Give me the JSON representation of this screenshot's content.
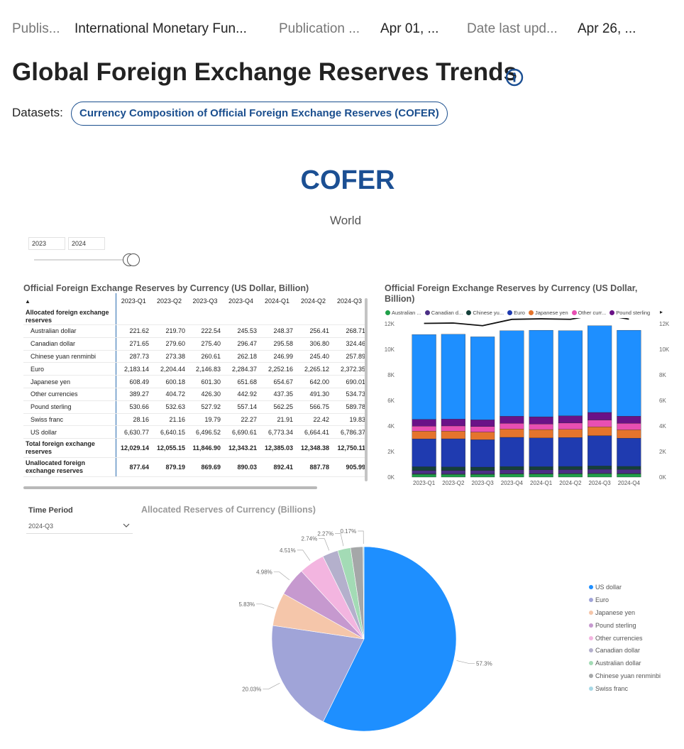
{
  "meta": {
    "publisher_key": "Publis...",
    "publisher_val": "International Monetary Fun...",
    "pubdate_key": "Publication ...",
    "pubdate_val": "Apr 01, ...",
    "updated_key": "Date last upd...",
    "updated_val": "Apr 26, ..."
  },
  "page": {
    "title": "Global Foreign Exchange Reserves Trends",
    "datasets_label": "Datasets:",
    "dataset_link": "Currency Composition of Official Foreign Exchange Reserves (COFER)"
  },
  "report": {
    "title": "COFER",
    "subtitle": "World",
    "slider": {
      "start_year": "2023",
      "end_year": "2024",
      "handle_position": 1.0
    }
  },
  "table": {
    "title": "Official Foreign Exchange Reserves by Currency (US Dollar, Billion)",
    "sort_icon": "sort-ascending-triangle",
    "columns": [
      "2023-Q1",
      "2023-Q2",
      "2023-Q3",
      "2023-Q4",
      "2024-Q1",
      "2024-Q2",
      "2024-Q3"
    ],
    "group_label": "Allocated foreign exchange reserves",
    "rows": [
      {
        "label": "Australian dollar",
        "values": [
          "221.62",
          "219.70",
          "222.54",
          "245.53",
          "248.37",
          "256.41",
          "268.71"
        ]
      },
      {
        "label": "Canadian dollar",
        "values": [
          "271.65",
          "279.60",
          "275.40",
          "296.47",
          "295.58",
          "306.80",
          "324.46"
        ]
      },
      {
        "label": "Chinese yuan renminbi",
        "values": [
          "287.73",
          "273.38",
          "260.61",
          "262.18",
          "246.99",
          "245.40",
          "257.89"
        ]
      },
      {
        "label": "Euro",
        "values": [
          "2,183.14",
          "2,204.44",
          "2,146.83",
          "2,284.37",
          "2,252.16",
          "2,265.12",
          "2,372.35"
        ]
      },
      {
        "label": "Japanese yen",
        "values": [
          "608.49",
          "600.18",
          "601.30",
          "651.68",
          "654.67",
          "642.00",
          "690.01"
        ]
      },
      {
        "label": "Other currencies",
        "values": [
          "389.27",
          "404.72",
          "426.30",
          "442.92",
          "437.35",
          "491.30",
          "534.73"
        ]
      },
      {
        "label": "Pound sterling",
        "values": [
          "530.66",
          "532.63",
          "527.92",
          "557.14",
          "562.25",
          "566.75",
          "589.78"
        ]
      },
      {
        "label": "Swiss franc",
        "values": [
          "28.16",
          "21.16",
          "19.79",
          "22.27",
          "21.91",
          "22.42",
          "19.83"
        ]
      },
      {
        "label": "US dollar",
        "values": [
          "6,630.77",
          "6,640.15",
          "6,496.52",
          "6,690.61",
          "6,773.34",
          "6,664.41",
          "6,786.37"
        ]
      }
    ],
    "totals": [
      {
        "label": "Total foreign exchange reserves",
        "values": [
          "12,029.14",
          "12,055.15",
          "11,846.90",
          "12,343.21",
          "12,385.03",
          "12,348.38",
          "12,750.11"
        ]
      },
      {
        "label": "Unallocated foreign exchange reserves",
        "values": [
          "877.64",
          "879.19",
          "869.69",
          "890.03",
          "892.41",
          "887.78",
          "905.99"
        ]
      }
    ]
  },
  "bar_chart": {
    "title": "Official Foreign Exchange Reserves by Currency (US Dollar, Billion)",
    "legend_arrow": "▸",
    "legend": [
      {
        "label": "Australian ...",
        "color": "#20a04a"
      },
      {
        "label": "Canadian d...",
        "color": "#4b2f86"
      },
      {
        "label": "Chinese yu...",
        "color": "#15403a"
      },
      {
        "label": "Euro",
        "color": "#1f3bb0"
      },
      {
        "label": "Japanese yen",
        "color": "#e5742c"
      },
      {
        "label": "Other curr...",
        "color": "#e84fb2"
      },
      {
        "label": "Pound sterling",
        "color": "#6a1287"
      }
    ],
    "left_axis_ticks": [
      "0K",
      "2K",
      "4K",
      "6K",
      "8K",
      "10K",
      "12K"
    ],
    "right_axis_ticks": [
      "0K",
      "2K",
      "4K",
      "6K",
      "8K",
      "10K",
      "12K"
    ]
  },
  "chart_data": [
    {
      "type": "bar",
      "stacked": true,
      "title": "Official Foreign Exchange Reserves by Currency (US Dollar, Billion)",
      "categories": [
        "2023-Q1",
        "2023-Q2",
        "2023-Q3",
        "2023-Q4",
        "2024-Q1",
        "2024-Q2",
        "2024-Q3",
        "2024-Q4"
      ],
      "ylim": [
        0,
        12000
      ],
      "series": [
        {
          "name": "Australian dollar",
          "color": "#20a04a",
          "values": [
            221.62,
            219.7,
            222.54,
            245.53,
            248.37,
            256.41,
            268.71,
            258.0
          ]
        },
        {
          "name": "Swiss franc",
          "color": "#2e7d32",
          "values": [
            28.16,
            21.16,
            19.79,
            22.27,
            21.91,
            22.42,
            19.83,
            20.0
          ]
        },
        {
          "name": "Canadian dollar",
          "color": "#4b2f86",
          "values": [
            271.65,
            279.6,
            275.4,
            296.47,
            295.58,
            306.8,
            324.46,
            315.0
          ]
        },
        {
          "name": "Chinese yuan renminbi",
          "color": "#15403a",
          "values": [
            287.73,
            273.38,
            260.61,
            262.18,
            246.99,
            245.4,
            257.89,
            245.0
          ]
        },
        {
          "name": "Euro",
          "color": "#1f3bb0",
          "values": [
            2183.14,
            2204.44,
            2146.83,
            2284.37,
            2252.16,
            2265.12,
            2372.35,
            2210.0
          ]
        },
        {
          "name": "Japanese yen",
          "color": "#e5742c",
          "values": [
            608.49,
            600.18,
            601.3,
            651.68,
            654.67,
            642.0,
            690.01,
            650.0
          ]
        },
        {
          "name": "Other currencies",
          "color": "#e84fb2",
          "values": [
            389.27,
            404.72,
            426.3,
            442.92,
            437.35,
            491.3,
            534.73,
            510.0
          ]
        },
        {
          "name": "Pound sterling",
          "color": "#6a1287",
          "values": [
            530.66,
            532.63,
            527.92,
            557.14,
            562.25,
            566.75,
            589.78,
            560.0
          ]
        },
        {
          "name": "US dollar",
          "color": "#1e8fff",
          "values": [
            6630.77,
            6640.15,
            6496.52,
            6690.61,
            6773.34,
            6664.41,
            6786.37,
            6725.0
          ]
        }
      ],
      "line_series": {
        "values": [
          12029.14,
          12055.15,
          11846.9,
          12343.21,
          12385.03,
          12348.38,
          12750.11,
          12360.0
        ],
        "color": "#111111"
      }
    },
    {
      "type": "pie",
      "title": "Allocated Reserves of Currency (Billions)",
      "slices": [
        {
          "name": "US dollar",
          "value": 57.3,
          "label": "57.3%",
          "color": "#1e8fff"
        },
        {
          "name": "Euro",
          "value": 20.03,
          "label": "20.03%",
          "color": "#a0a4d8"
        },
        {
          "name": "Japanese yen",
          "value": 5.83,
          "label": "5.83%",
          "color": "#f5c6aa"
        },
        {
          "name": "Pound sterling",
          "value": 4.98,
          "label": "4.98%",
          "color": "#c699cf"
        },
        {
          "name": "Other currencies",
          "value": 4.51,
          "label": "4.51%",
          "color": "#f3b5e0"
        },
        {
          "name": "Canadian dollar",
          "value": 2.74,
          "label": "2.74%",
          "color": "#b4b0cc"
        },
        {
          "name": "Australian dollar",
          "value": 2.27,
          "label": "2.27%",
          "color": "#a3dbb5"
        },
        {
          "name": "Chinese yuan renminbi",
          "value": 2.17,
          "label": "",
          "color": "#a5a7a8"
        },
        {
          "name": "Swiss franc",
          "value": 0.17,
          "label": "0.17%",
          "color": "#a7d8e6"
        }
      ]
    }
  ],
  "pie_section": {
    "title": "Allocated Reserves of Currency (Billions)",
    "time_period_label": "Time Period",
    "time_period_value": "2024-Q3"
  }
}
